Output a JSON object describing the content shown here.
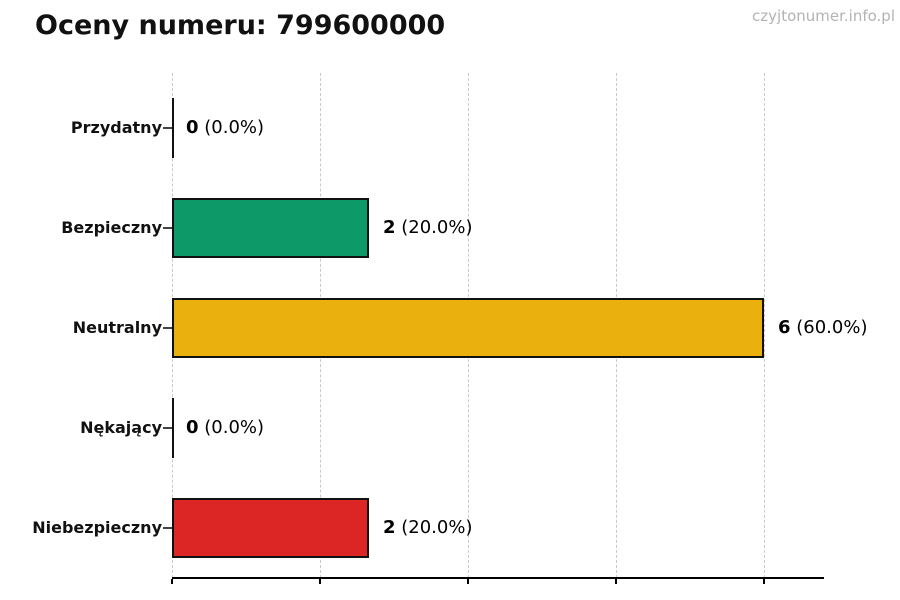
{
  "title": "Oceny numeru: 799600000",
  "watermark": "czyjtonumer.info.pl",
  "chart_data": {
    "type": "bar",
    "orientation": "horizontal",
    "title": "Oceny numeru: 799600000",
    "categories": [
      "Przydatny",
      "Bezpieczny",
      "Neutralny",
      "Nękający",
      "Niebezpieczny"
    ],
    "values": [
      0,
      2,
      6,
      0,
      2
    ],
    "percent_labels": [
      "0.0%",
      "20.0%",
      "60.0%",
      "0.0%",
      "20.0%"
    ],
    "bar_colors": [
      null,
      "#0d9a68",
      "#e9b00e",
      null,
      "#dc2626"
    ],
    "xlim": [
      0,
      6.6
    ],
    "xticks": [
      0,
      1.5,
      3,
      4.5,
      6
    ],
    "x_tick_labels_visible": false,
    "grid": "vertical-dashed",
    "legend": "none",
    "colors": {
      "bar_edge": "#111111",
      "grid": "#c9c9c9",
      "axis": "#000000",
      "text": "#111111",
      "watermark": "#b3b3b3",
      "green": "#0d9a68",
      "yellow": "#e9b00e",
      "red": "#dc2626"
    }
  }
}
